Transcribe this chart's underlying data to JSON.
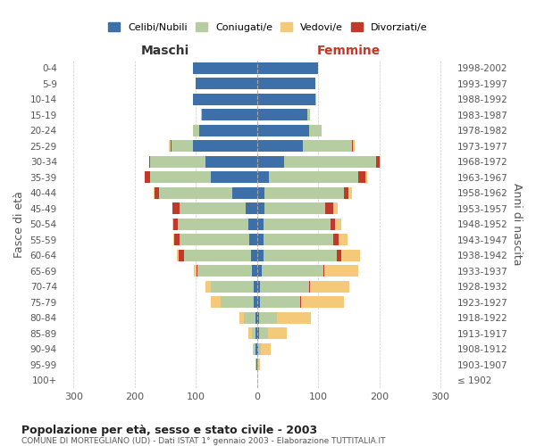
{
  "age_groups": [
    "100+",
    "95-99",
    "90-94",
    "85-89",
    "80-84",
    "75-79",
    "70-74",
    "65-69",
    "60-64",
    "55-59",
    "50-54",
    "45-49",
    "40-44",
    "35-39",
    "30-34",
    "25-29",
    "20-24",
    "15-19",
    "10-14",
    "5-9",
    "0-4"
  ],
  "birth_years": [
    "≤ 1902",
    "1903-1907",
    "1908-1912",
    "1913-1917",
    "1918-1922",
    "1923-1927",
    "1928-1932",
    "1933-1937",
    "1938-1942",
    "1943-1947",
    "1948-1952",
    "1953-1957",
    "1958-1962",
    "1963-1967",
    "1968-1972",
    "1973-1977",
    "1978-1982",
    "1983-1987",
    "1988-1992",
    "1993-1997",
    "1998-2002"
  ],
  "male": {
    "celibi": [
      0,
      1,
      2,
      3,
      3,
      5,
      5,
      8,
      10,
      12,
      14,
      18,
      40,
      75,
      85,
      105,
      95,
      90,
      105,
      100,
      105
    ],
    "coniugati": [
      0,
      1,
      3,
      6,
      18,
      55,
      70,
      90,
      110,
      115,
      115,
      108,
      120,
      100,
      90,
      35,
      10,
      2,
      0,
      0,
      0
    ],
    "vedovi": [
      0,
      0,
      2,
      5,
      8,
      15,
      10,
      5,
      3,
      2,
      2,
      1,
      1,
      1,
      0,
      2,
      0,
      0,
      0,
      0,
      0
    ],
    "divorziati": [
      0,
      0,
      0,
      0,
      0,
      0,
      0,
      1,
      8,
      8,
      8,
      12,
      8,
      8,
      2,
      2,
      0,
      0,
      0,
      0,
      0
    ]
  },
  "female": {
    "nubili": [
      0,
      1,
      2,
      3,
      3,
      5,
      5,
      8,
      10,
      10,
      10,
      12,
      12,
      20,
      45,
      75,
      85,
      82,
      95,
      95,
      100
    ],
    "coniugate": [
      0,
      1,
      5,
      15,
      30,
      65,
      80,
      100,
      120,
      115,
      110,
      100,
      130,
      145,
      150,
      80,
      20,
      5,
      2,
      0,
      0
    ],
    "vedove": [
      1,
      3,
      15,
      30,
      55,
      70,
      65,
      55,
      30,
      15,
      10,
      8,
      5,
      3,
      2,
      2,
      0,
      0,
      0,
      0,
      0
    ],
    "divorziate": [
      0,
      0,
      0,
      0,
      0,
      2,
      1,
      2,
      8,
      8,
      8,
      12,
      8,
      12,
      5,
      2,
      0,
      0,
      0,
      0,
      0
    ]
  },
  "colors": {
    "celibi_nubili": "#3d6fa8",
    "coniugati": "#b5cda0",
    "vedovi": "#f5c97a",
    "divorziati": "#c0392b"
  },
  "xlim": 320,
  "title": "Popolazione per età, sesso e stato civile - 2003",
  "subtitle": "COMUNE DI MORTEGLIANO (UD) - Dati ISTAT 1° gennaio 2003 - Elaborazione TUTTITALIA.IT",
  "ylabel_left": "Fasce di età",
  "ylabel_right": "Anni di nascita",
  "xlabel_left": "Maschi",
  "xlabel_right": "Femmine",
  "legend_labels": [
    "Celibi/Nubili",
    "Coniugati/e",
    "Vedovi/e",
    "Divorziati/e"
  ]
}
